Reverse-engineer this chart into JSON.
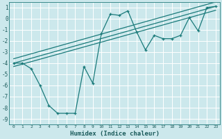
{
  "xlabel": "Humidex (Indice chaleur)",
  "ylabel": "",
  "xlim": [
    -0.5,
    23.5
  ],
  "ylim": [
    -9.5,
    1.5
  ],
  "yticks": [
    1,
    0,
    -1,
    -2,
    -3,
    -4,
    -5,
    -6,
    -7,
    -8,
    -9
  ],
  "xticks": [
    0,
    1,
    2,
    3,
    4,
    5,
    6,
    7,
    8,
    9,
    10,
    11,
    12,
    13,
    14,
    15,
    16,
    17,
    18,
    19,
    20,
    21,
    22,
    23
  ],
  "bg_color": "#cce8ec",
  "line_color": "#1a7a7a",
  "grid_color": "#ffffff",
  "line1_x": [
    0,
    1,
    2,
    3,
    4,
    5,
    6,
    7,
    8,
    9,
    10,
    11,
    12,
    13,
    14,
    15,
    16,
    17,
    18,
    19,
    20,
    21,
    22,
    23
  ],
  "line1_y": [
    -4.0,
    -4.0,
    -4.5,
    -6.0,
    -7.8,
    -8.5,
    -8.5,
    -8.5,
    -4.3,
    -5.8,
    -1.3,
    0.4,
    0.3,
    0.7,
    -1.2,
    -2.8,
    -1.5,
    -1.8,
    -1.8,
    -1.5,
    0.1,
    -1.1,
    1.0,
    1.1
  ],
  "line2_x": [
    0,
    23
  ],
  "line2_y": [
    -4.0,
    1.1
  ],
  "line3_x": [
    0,
    23
  ],
  "line3_y": [
    -3.6,
    1.5
  ],
  "line4_x": [
    0,
    23
  ],
  "line4_y": [
    -4.3,
    0.75
  ]
}
